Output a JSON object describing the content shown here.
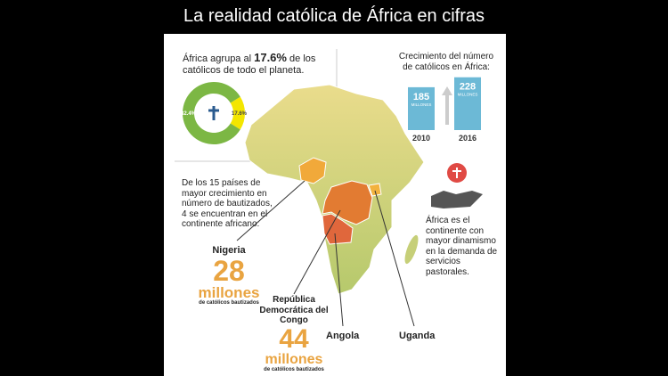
{
  "header": {
    "title": "La realidad católica de África en cifras"
  },
  "share": {
    "intro": "África agrupa al",
    "rest": "de los católicos de todo el planeta.",
    "donut": {
      "values": [
        17.6,
        82.4
      ],
      "value_labels": [
        "17.6%",
        "82.4%"
      ],
      "colors": [
        "#f3e600",
        "#7cb744"
      ]
    }
  },
  "growth": {
    "title": "Crecimiento del número de católicos en África:",
    "categories": [
      "2010",
      "2016"
    ],
    "values": [
      185,
      228
    ],
    "unit": "MILLONES",
    "color": "#6cb9d6"
  },
  "countries": {
    "text": "De los 15 países de mayor crecimiento en número de bautizados, 4 se encuentran en el continente africano:",
    "items": [
      {
        "name": "Nigeria",
        "value": 28,
        "unit": "millones",
        "note": "de católicos bautizados"
      },
      {
        "name": "República Democrática del Congo",
        "value": 44,
        "unit": "millones",
        "note": "de católicos bautizados"
      },
      {
        "name": "Angola"
      },
      {
        "name": "Uganda"
      }
    ]
  },
  "pastoral": {
    "text": "África es el continente con mayor dinamismo en la demanda de servicios pastorales."
  }
}
